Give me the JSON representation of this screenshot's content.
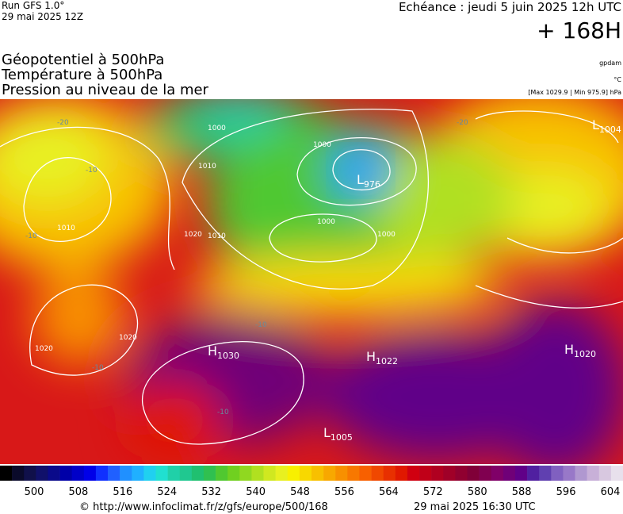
{
  "header": {
    "run": "Run GFS 1.0°",
    "run_date": "29 mai 2025 12Z",
    "forecast": "Echéance : jeudi 5 juin 2025 12h UTC",
    "lead": "+ 168H"
  },
  "titles": [
    "Géopotentiel à 500hPa",
    "Température à 500hPa",
    "Pression au niveau de la mer"
  ],
  "units": {
    "geopotential": "gpdam",
    "temperature": "°C",
    "pressure": "[Max 1029.9 | Min 975.9] hPa"
  },
  "pressure_centers": [
    {
      "letter": "L",
      "value": 976
    },
    {
      "letter": "H",
      "value": 1030
    },
    {
      "letter": "H",
      "value": 1022
    },
    {
      "letter": "H",
      "value": 1020
    },
    {
      "letter": "L",
      "value": 1005
    },
    {
      "letter": "L",
      "value": 1004
    }
  ],
  "isobar_labels": [
    1000,
    1000,
    1000,
    1000,
    1010,
    1010,
    1010,
    1020,
    1020,
    1020
  ],
  "temperature_labels": [
    -20,
    -20,
    -10,
    -10,
    -10,
    -10,
    -10
  ],
  "colorbar": {
    "ticks": [
      500,
      508,
      516,
      524,
      532,
      540,
      548,
      556,
      564,
      572,
      580,
      588,
      596,
      604
    ],
    "colors": [
      "#000000",
      "#0a0a2a",
      "#10104a",
      "#10106a",
      "#0a0a8a",
      "#0000a8",
      "#0000c8",
      "#0000e8",
      "#1030ff",
      "#2060ff",
      "#2090ff",
      "#20b0ff",
      "#20d0f0",
      "#20e0d0",
      "#20d0a8",
      "#20c890",
      "#20c070",
      "#30c050",
      "#50c830",
      "#70d020",
      "#90d820",
      "#b0e020",
      "#d0e820",
      "#e8f020",
      "#f8f000",
      "#f8d800",
      "#f8c000",
      "#f8a800",
      "#f89000",
      "#f87800",
      "#f86000",
      "#f04800",
      "#e83000",
      "#e01800",
      "#d00010",
      "#c00018",
      "#b00020",
      "#a00028",
      "#900030",
      "#800038",
      "#800050",
      "#800068",
      "#700078",
      "#600088",
      "#5020a0",
      "#6040b0",
      "#8060c0",
      "#9878c8",
      "#b098d0",
      "#c8b0d8",
      "#d8c8e0",
      "#e8e0ec"
    ]
  },
  "footer": {
    "url": "© http://www.infoclimat.fr/z/gfs/europe/500/168",
    "generated": "29 mai 2025 16:30 UTC"
  }
}
